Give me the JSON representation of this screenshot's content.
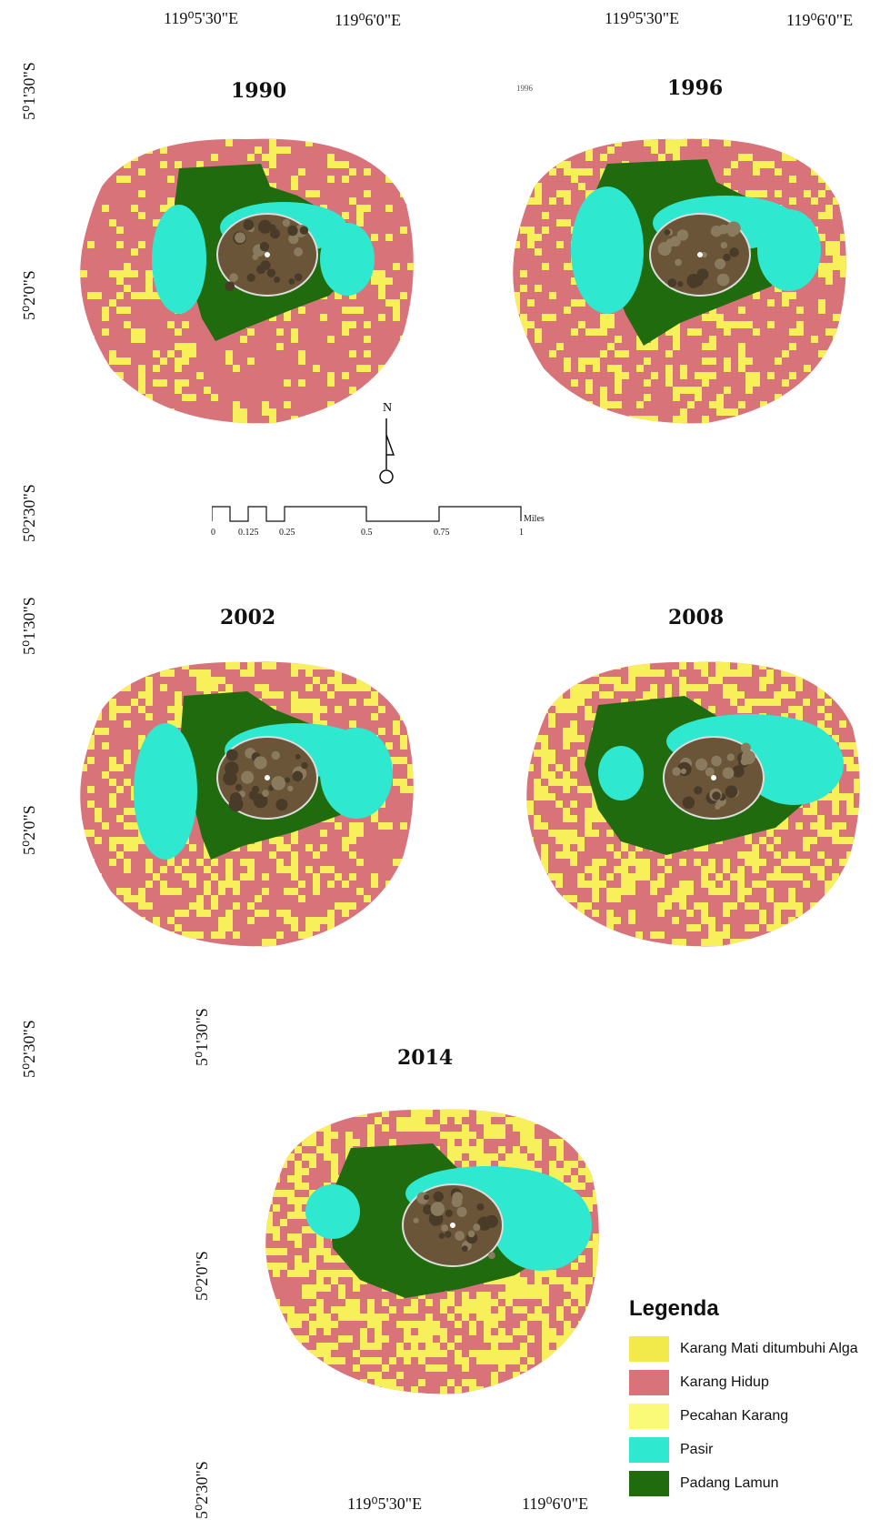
{
  "coords": {
    "top_lon_1": "119⁰5'30\"E",
    "top_lon_2": "119⁰6'0\"E",
    "top_lon_3": "119⁰5'30\"E",
    "top_lon_4": "119⁰6'0\"E",
    "bottom_lon_1": "119⁰5'30\"E",
    "bottom_lon_2": "119⁰6'0\"E",
    "lat_1": "5⁰1'30\"S",
    "lat_2": "5⁰2'0\"S",
    "lat_3": "5⁰2'30\"S",
    "lat_4": "5⁰1'30\"S",
    "lat_5": "5⁰2'0\"S",
    "lat_6": "5⁰2'30\"S",
    "lat_7": "5⁰1'30\"S",
    "lat_8": "5⁰2'0\"S",
    "lat_9": "5⁰2'30\"S"
  },
  "maps": [
    {
      "year": "1990"
    },
    {
      "year": "1996"
    },
    {
      "year": "2002"
    },
    {
      "year": "2008"
    },
    {
      "year": "2014"
    }
  ],
  "stray_label": "1996",
  "north_label": "N",
  "scale": {
    "ticks": [
      "0",
      "0.125",
      "0.25",
      "0.5",
      "0.75",
      "1"
    ],
    "unit": "Miles"
  },
  "legend": {
    "title": "Legenda",
    "items": [
      {
        "label": "Karang Mati ditumbuhi Alga",
        "color": "#f2ea4a"
      },
      {
        "label": "Karang Hidup",
        "color": "#d9737a"
      },
      {
        "label": "Pecahan Karang",
        "color": "#fafa78"
      },
      {
        "label": "Pasir",
        "color": "#2ee8cf"
      },
      {
        "label": "Padang Lamun",
        "color": "#1f6b0d"
      }
    ]
  },
  "colors": {
    "reef_live": "#d9737a",
    "rubble": "#f7f05a",
    "sand": "#2ee8cf",
    "seagrass": "#1f6b0d",
    "island": "#6b5538"
  }
}
